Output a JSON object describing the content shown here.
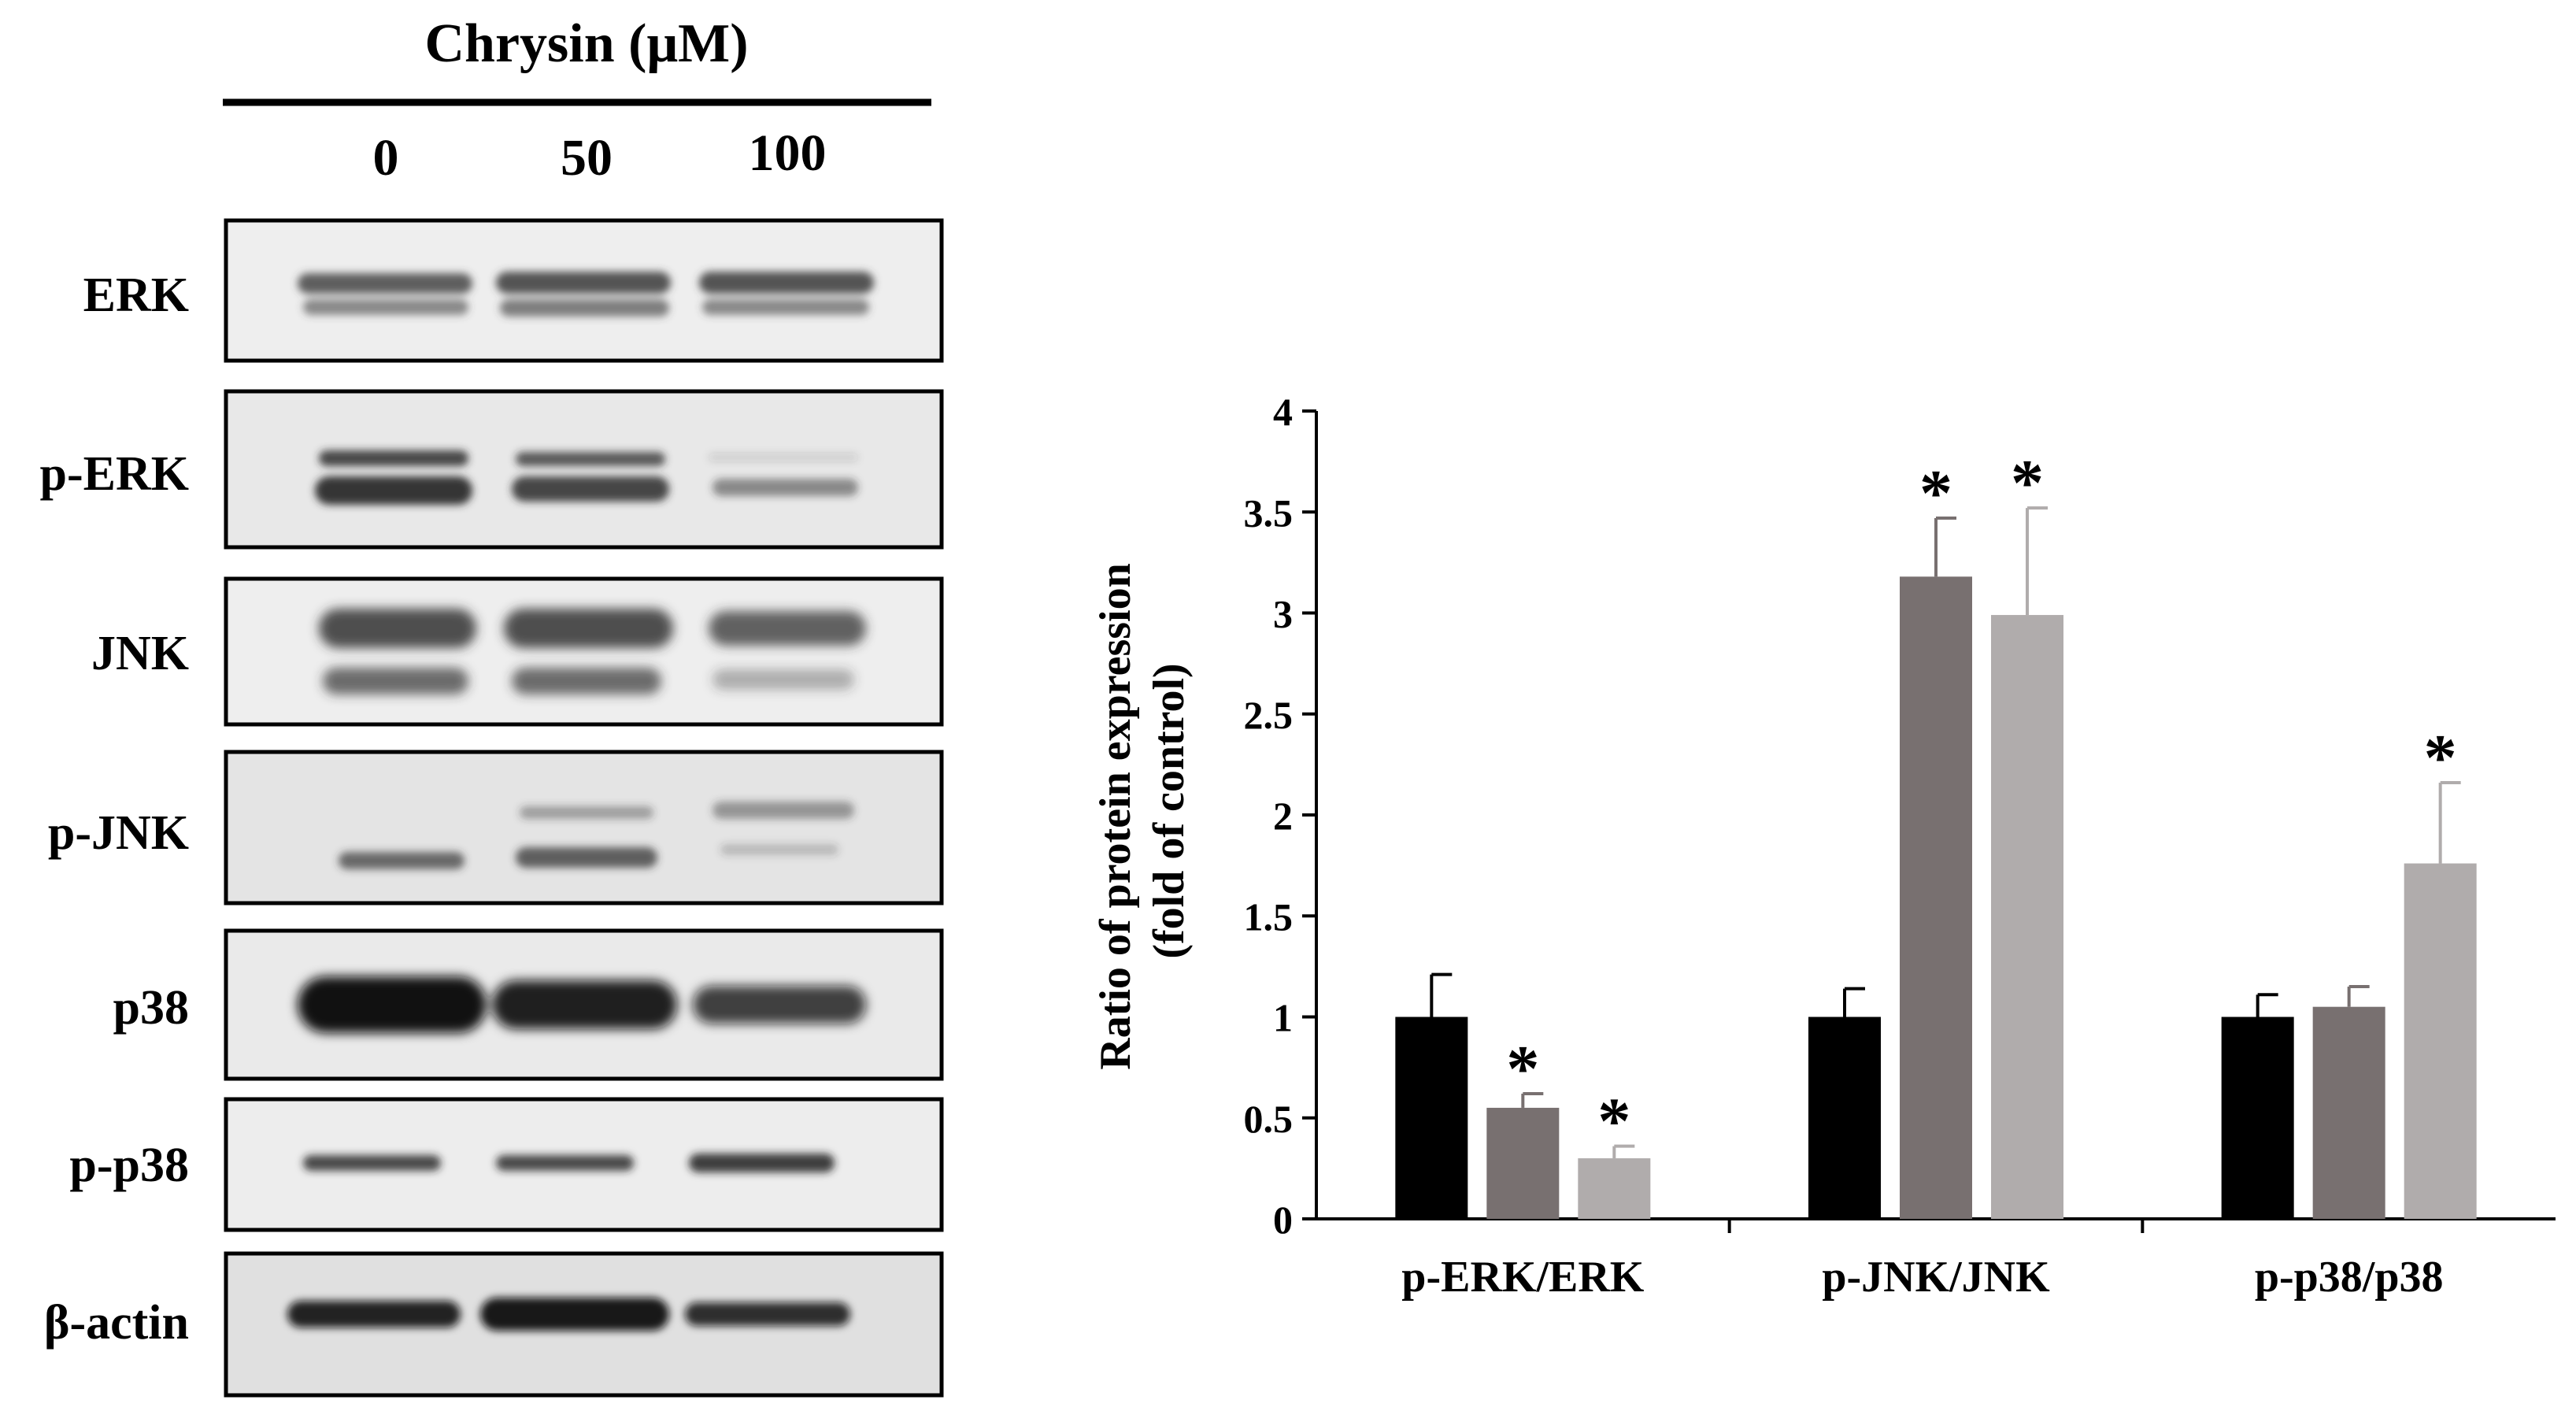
{
  "blot": {
    "treatment_label": "Chrysin (μM)",
    "doses": [
      "0",
      "50",
      "100"
    ],
    "rows": [
      {
        "label": "ERK"
      },
      {
        "label": "p-ERK"
      },
      {
        "label": "JNK"
      },
      {
        "label": "p-JNK"
      },
      {
        "label": "p38"
      },
      {
        "label": "p-p38"
      },
      {
        "label": "β-actin"
      }
    ]
  },
  "chart_data": {
    "type": "bar",
    "title": "",
    "xlabel": "",
    "ylabel": "Ratio of protein expression\n(fold of control)",
    "ylim": [
      0,
      4
    ],
    "yticks": [
      0,
      0.5,
      1,
      1.5,
      2,
      2.5,
      3,
      3.5,
      4
    ],
    "ytick_labels": [
      "0",
      "0.5",
      "1",
      "1.5",
      "2",
      "2.5",
      "3",
      "3.5",
      "4"
    ],
    "grid": false,
    "legend": "none",
    "categories": [
      "p-ERK/ERK",
      "p-JNK/JNK",
      "p-p38/p38"
    ],
    "series": [
      {
        "color": "#000000",
        "values": [
          1.0,
          1.0,
          1.0
        ],
        "errors": [
          0.21,
          0.14,
          0.11
        ],
        "significant": [
          false,
          false,
          false
        ]
      },
      {
        "color": "#787070",
        "values": [
          0.55,
          3.18,
          1.05
        ],
        "errors": [
          0.07,
          0.29,
          0.1
        ],
        "significant": [
          true,
          true,
          false
        ]
      },
      {
        "color": "#b0acac",
        "values": [
          0.3,
          2.99,
          1.76
        ],
        "errors": [
          0.06,
          0.53,
          0.4
        ],
        "significant": [
          true,
          true,
          true
        ]
      }
    ],
    "significance_marker": "*"
  }
}
